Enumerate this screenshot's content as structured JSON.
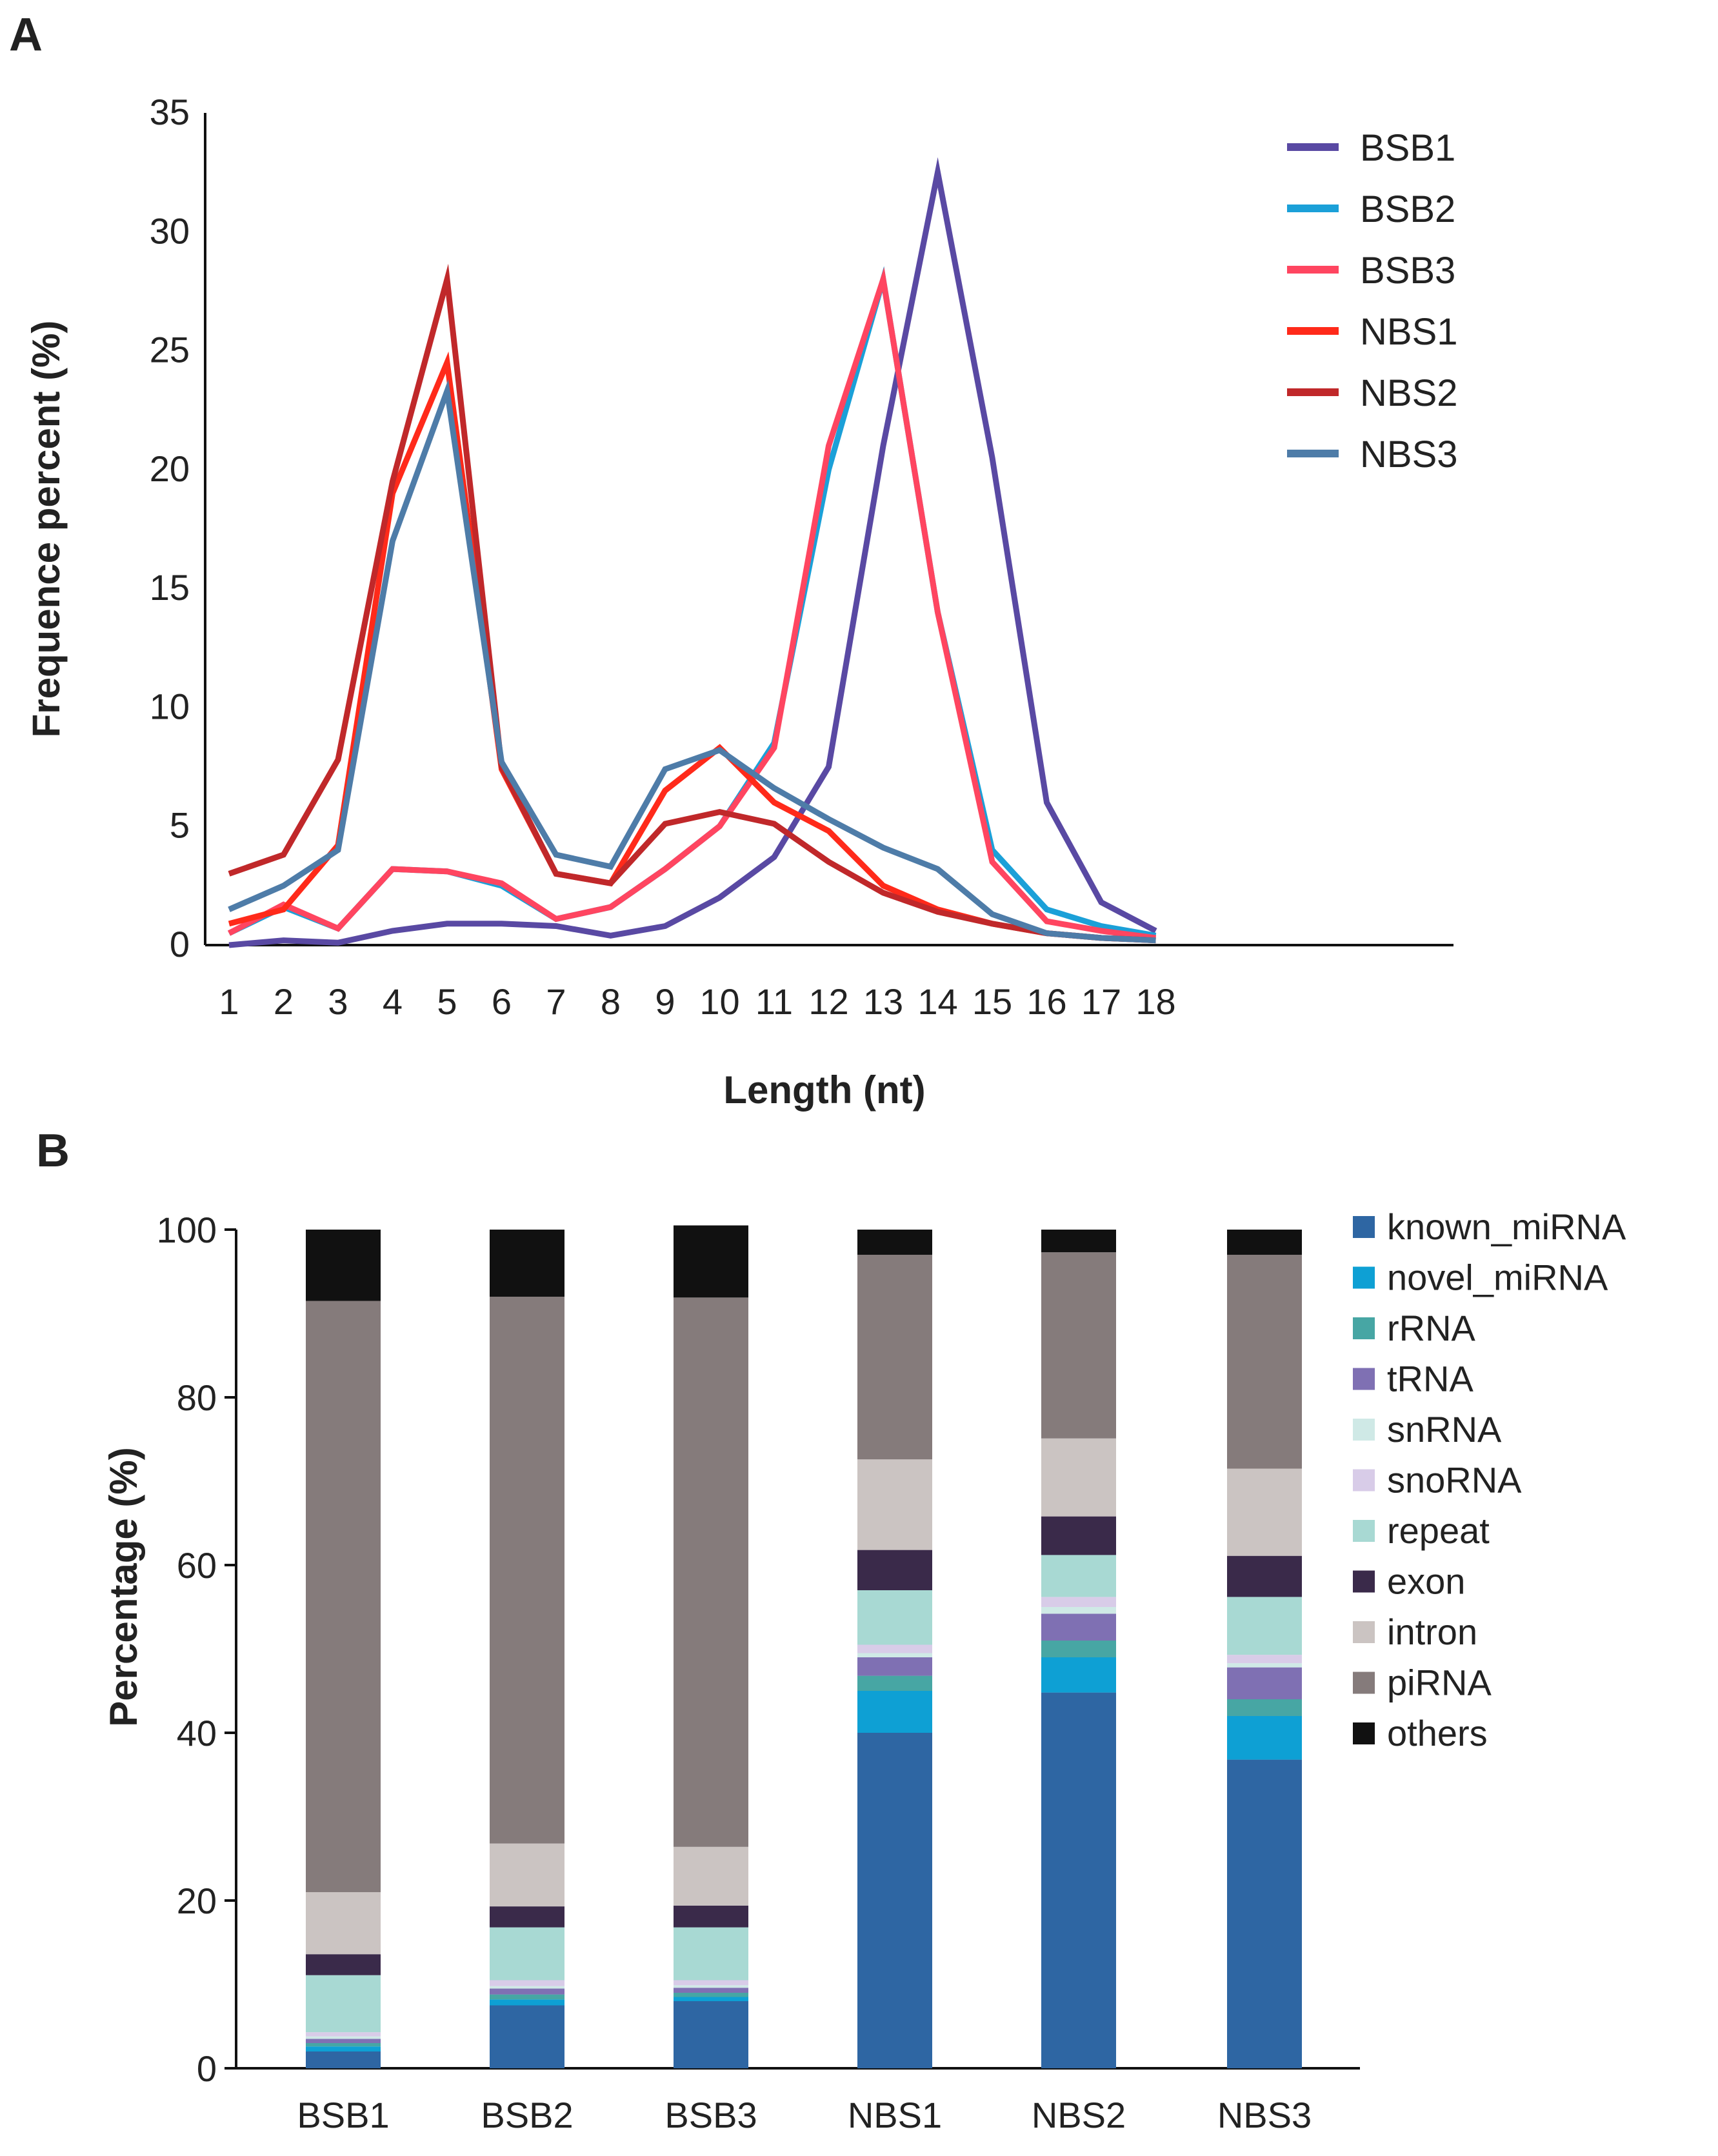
{
  "panels": {
    "a_label": "A",
    "b_label": "B"
  },
  "chart_data": [
    {
      "type": "line",
      "panel": "A",
      "xlabel": "Length (nt)",
      "ylabel": "Frequence percent (%)",
      "ylim": [
        0,
        35
      ],
      "yticks": [
        "0",
        "5",
        "10",
        "15",
        "20",
        "25",
        "30",
        "35"
      ],
      "x": [
        "1",
        "2",
        "3",
        "4",
        "5",
        "6",
        "7",
        "8",
        "9",
        "10",
        "11",
        "12",
        "13",
        "14",
        "15",
        "16",
        "17",
        "18"
      ],
      "legend_position": "top-right",
      "series": [
        {
          "name": "BSB1",
          "color": "#5949A3",
          "values": [
            0.0,
            0.2,
            0.1,
            0.6,
            0.9,
            0.9,
            0.8,
            0.4,
            0.8,
            2.0,
            3.7,
            7.5,
            21.0,
            32.5,
            20.5,
            6.0,
            1.8,
            0.6
          ]
        },
        {
          "name": "BSB2",
          "color": "#1BA0D8",
          "values": [
            0.5,
            1.6,
            0.7,
            3.2,
            3.1,
            2.5,
            1.1,
            1.6,
            3.2,
            5.0,
            8.5,
            20.0,
            28.0,
            14.0,
            4.0,
            1.5,
            0.8,
            0.4
          ]
        },
        {
          "name": "BSB3",
          "color": "#FF4560",
          "values": [
            0.5,
            1.7,
            0.7,
            3.2,
            3.1,
            2.6,
            1.1,
            1.6,
            3.2,
            5.0,
            8.3,
            21.0,
            28.0,
            14.0,
            3.5,
            1.0,
            0.6,
            0.3
          ]
        },
        {
          "name": "NBS1",
          "color": "#FF2A1A",
          "values": [
            0.9,
            1.5,
            4.2,
            19.0,
            24.5,
            7.4,
            3.0,
            2.6,
            6.5,
            8.3,
            6.0,
            4.8,
            2.5,
            1.5,
            0.9,
            0.5,
            0.3,
            0.2
          ]
        },
        {
          "name": "NBS2",
          "color": "#C0282A",
          "values": [
            3.0,
            3.8,
            7.8,
            19.5,
            28.0,
            7.5,
            3.0,
            2.6,
            5.1,
            5.6,
            5.1,
            3.5,
            2.2,
            1.4,
            0.9,
            0.5,
            0.3,
            0.2
          ]
        },
        {
          "name": "NBS3",
          "color": "#4E7CA8",
          "values": [
            1.5,
            2.5,
            4.0,
            17.0,
            23.3,
            7.7,
            3.8,
            3.3,
            7.4,
            8.2,
            6.6,
            5.3,
            4.1,
            3.2,
            1.3,
            0.5,
            0.3,
            0.2
          ]
        }
      ]
    },
    {
      "type": "bar",
      "stacked": true,
      "panel": "B",
      "xlabel": "",
      "ylabel": "Percentage (%)",
      "ylim": [
        0,
        100
      ],
      "yticks": [
        "0",
        "20",
        "40",
        "60",
        "80",
        "100"
      ],
      "categories": [
        "BSB1",
        "BSB2",
        "BSB3",
        "NBS1",
        "NBS2",
        "NBS3"
      ],
      "legend_position": "right",
      "series": [
        {
          "name": "known_miRNA",
          "color": "#2E66A3",
          "values": [
            2.0,
            7.5,
            8.0,
            40.0,
            44.8,
            36.8
          ]
        },
        {
          "name": "novel_miRNA",
          "color": "#0EA0D4",
          "values": [
            0.6,
            0.7,
            0.5,
            5.0,
            4.2,
            5.2
          ]
        },
        {
          "name": "rRNA",
          "color": "#47A6A4",
          "values": [
            0.4,
            0.6,
            0.5,
            1.8,
            2.0,
            2.0
          ]
        },
        {
          "name": "tRNA",
          "color": "#7F70B3",
          "values": [
            0.5,
            0.7,
            0.6,
            2.2,
            3.2,
            3.8
          ]
        },
        {
          "name": "snRNA",
          "color": "#CFE9E6",
          "values": [
            0.3,
            0.3,
            0.3,
            0.5,
            0.8,
            0.5
          ]
        },
        {
          "name": "snoRNA",
          "color": "#D8CCE8",
          "values": [
            0.5,
            0.7,
            0.6,
            1.0,
            1.2,
            1.0
          ]
        },
        {
          "name": "repeat",
          "color": "#A8D9D3",
          "values": [
            6.8,
            6.3,
            6.3,
            6.5,
            5.0,
            6.9
          ]
        },
        {
          "name": "exon",
          "color": "#3A2A4A",
          "values": [
            2.5,
            2.5,
            2.6,
            4.8,
            4.6,
            4.9
          ]
        },
        {
          "name": "intron",
          "color": "#CBC4C2",
          "values": [
            7.4,
            7.5,
            7.0,
            10.8,
            9.3,
            10.4
          ]
        },
        {
          "name": "piRNA",
          "color": "#857B7B",
          "values": [
            70.5,
            65.2,
            65.5,
            24.4,
            22.2,
            25.5
          ]
        },
        {
          "name": "others",
          "color": "#111111",
          "values": [
            8.5,
            8.0,
            8.6,
            3.0,
            2.7,
            3.0
          ]
        }
      ]
    }
  ]
}
